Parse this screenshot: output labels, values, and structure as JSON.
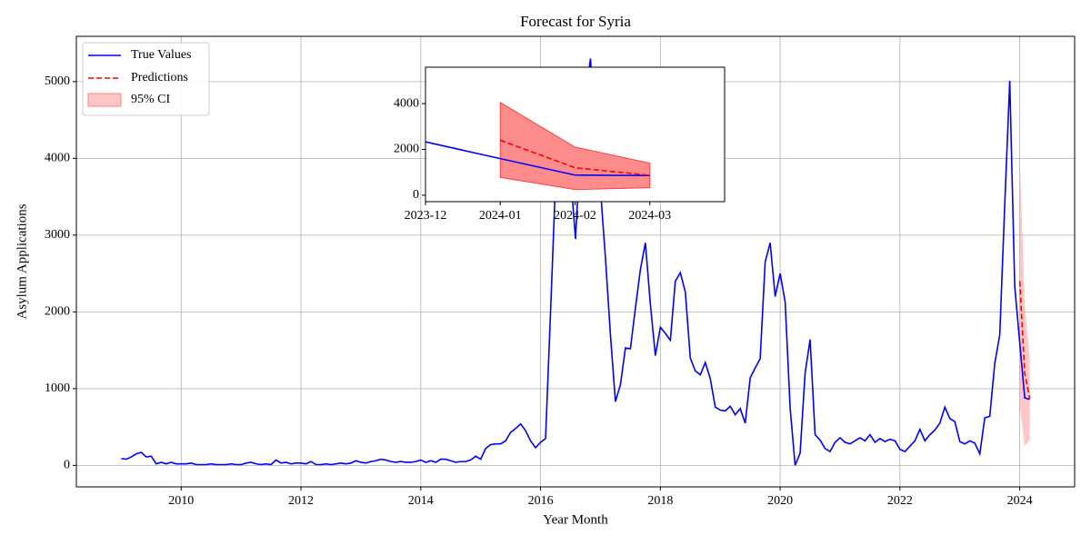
{
  "chart_data": {
    "type": "line",
    "title": "Forecast for Syria",
    "x_label": "Year Month",
    "y_label": "Asylum Applications",
    "x": [
      "2009-01",
      "2009-02",
      "2009-03",
      "2009-04",
      "2009-05",
      "2009-06",
      "2009-07",
      "2009-08",
      "2009-09",
      "2009-10",
      "2009-11",
      "2009-12",
      "2010-01",
      "2010-02",
      "2010-03",
      "2010-04",
      "2010-05",
      "2010-06",
      "2010-07",
      "2010-08",
      "2010-09",
      "2010-10",
      "2010-11",
      "2010-12",
      "2011-01",
      "2011-02",
      "2011-03",
      "2011-04",
      "2011-05",
      "2011-06",
      "2011-07",
      "2011-08",
      "2011-09",
      "2011-10",
      "2011-11",
      "2011-12",
      "2012-01",
      "2012-02",
      "2012-03",
      "2012-04",
      "2012-05",
      "2012-06",
      "2012-07",
      "2012-08",
      "2012-09",
      "2012-10",
      "2012-11",
      "2012-12",
      "2013-01",
      "2013-02",
      "2013-03",
      "2013-04",
      "2013-05",
      "2013-06",
      "2013-07",
      "2013-08",
      "2013-09",
      "2013-10",
      "2013-11",
      "2013-12",
      "2014-01",
      "2014-02",
      "2014-03",
      "2014-04",
      "2014-05",
      "2014-06",
      "2014-07",
      "2014-08",
      "2014-09",
      "2014-10",
      "2014-11",
      "2014-12",
      "2015-01",
      "2015-02",
      "2015-03",
      "2015-04",
      "2015-05",
      "2015-06",
      "2015-07",
      "2015-08",
      "2015-09",
      "2015-10",
      "2015-11",
      "2015-12",
      "2016-01",
      "2016-02",
      "2016-03",
      "2016-04",
      "2016-05",
      "2016-06",
      "2016-07",
      "2016-08",
      "2016-09",
      "2016-10",
      "2016-11",
      "2016-12",
      "2017-01",
      "2017-02",
      "2017-03",
      "2017-04",
      "2017-05",
      "2017-06",
      "2017-07",
      "2017-08",
      "2017-09",
      "2017-10",
      "2017-11",
      "2017-12",
      "2018-01",
      "2018-02",
      "2018-03",
      "2018-04",
      "2018-05",
      "2018-06",
      "2018-07",
      "2018-08",
      "2018-09",
      "2018-10",
      "2018-11",
      "2018-12",
      "2019-01",
      "2019-02",
      "2019-03",
      "2019-04",
      "2019-05",
      "2019-06",
      "2019-07",
      "2019-08",
      "2019-09",
      "2019-10",
      "2019-11",
      "2019-12",
      "2020-01",
      "2020-02",
      "2020-03",
      "2020-04",
      "2020-05",
      "2020-06",
      "2020-07",
      "2020-08",
      "2020-09",
      "2020-10",
      "2020-11",
      "2020-12",
      "2021-01",
      "2021-02",
      "2021-03",
      "2021-04",
      "2021-05",
      "2021-06",
      "2021-07",
      "2021-08",
      "2021-09",
      "2021-10",
      "2021-11",
      "2021-12",
      "2022-01",
      "2022-02",
      "2022-03",
      "2022-04",
      "2022-05",
      "2022-06",
      "2022-07",
      "2022-08",
      "2022-09",
      "2022-10",
      "2022-11",
      "2022-12",
      "2023-01",
      "2023-02",
      "2023-03",
      "2023-04",
      "2023-05",
      "2023-06",
      "2023-07",
      "2023-08",
      "2023-09",
      "2023-10",
      "2023-11",
      "2023-12",
      "2024-01",
      "2024-02",
      "2024-03"
    ],
    "series": [
      {
        "name": "True Values",
        "color": "#0000ff",
        "values": [
          90,
          80,
          110,
          150,
          170,
          110,
          120,
          20,
          40,
          20,
          40,
          20,
          20,
          20,
          30,
          10,
          10,
          10,
          20,
          10,
          10,
          10,
          20,
          10,
          10,
          30,
          40,
          20,
          10,
          20,
          10,
          70,
          30,
          40,
          20,
          30,
          30,
          20,
          50,
          10,
          10,
          20,
          10,
          20,
          30,
          20,
          30,
          60,
          40,
          30,
          50,
          60,
          80,
          70,
          50,
          40,
          50,
          40,
          40,
          50,
          70,
          40,
          60,
          40,
          80,
          80,
          60,
          40,
          50,
          50,
          70,
          120,
          80,
          220,
          270,
          280,
          280,
          320,
          430,
          480,
          540,
          450,
          320,
          230,
          300,
          350,
          2000,
          3700,
          4200,
          4600,
          3800,
          2950,
          4200,
          4800,
          5300,
          4200,
          3600,
          2700,
          1700,
          830,
          1050,
          1530,
          1520,
          2050,
          2550,
          2900,
          2100,
          1430,
          1800,
          1720,
          1630,
          2400,
          2510,
          2260,
          1400,
          1230,
          1180,
          1340,
          1130,
          760,
          720,
          710,
          770,
          660,
          740,
          550,
          1140,
          1270,
          1390,
          2650,
          2900,
          2200,
          2500,
          2130,
          750,
          0,
          160,
          1200,
          1640,
          400,
          330,
          220,
          180,
          300,
          360,
          300,
          280,
          320,
          360,
          320,
          400,
          300,
          350,
          310,
          340,
          320,
          210,
          180,
          250,
          320,
          470,
          320,
          400,
          460,
          550,
          760,
          610,
          570,
          310,
          280,
          320,
          290,
          150,
          620,
          640,
          1330,
          1700,
          3400,
          5010,
          2330,
          1600,
          880,
          860
        ]
      }
    ],
    "forecast": {
      "name": "Predictions",
      "color": "#ff0000",
      "ci_name": "95% CI",
      "ci_color": "#ff8080",
      "x": [
        "2024-01",
        "2024-02",
        "2024-03"
      ],
      "values": [
        2400,
        1200,
        870
      ],
      "lower": [
        780,
        250,
        330
      ],
      "upper": [
        4050,
        2100,
        1400
      ]
    },
    "xlim": [
      "2008-04",
      "2024-12"
    ],
    "xticks": [
      "2010",
      "2012",
      "2014",
      "2016",
      "2018",
      "2020",
      "2022",
      "2024"
    ],
    "ylim": [
      -280,
      5590
    ],
    "yticks": [
      0,
      1000,
      2000,
      3000,
      4000,
      5000
    ],
    "grid": true,
    "legend": "upper left",
    "inset": {
      "xlim": [
        "2023-12",
        "2024-04"
      ],
      "xticks": [
        "2023-12",
        "2024-01",
        "2024-02",
        "2024-03"
      ],
      "ylim": [
        -280,
        5590
      ],
      "yticks": [
        0,
        2000,
        4000
      ]
    }
  }
}
